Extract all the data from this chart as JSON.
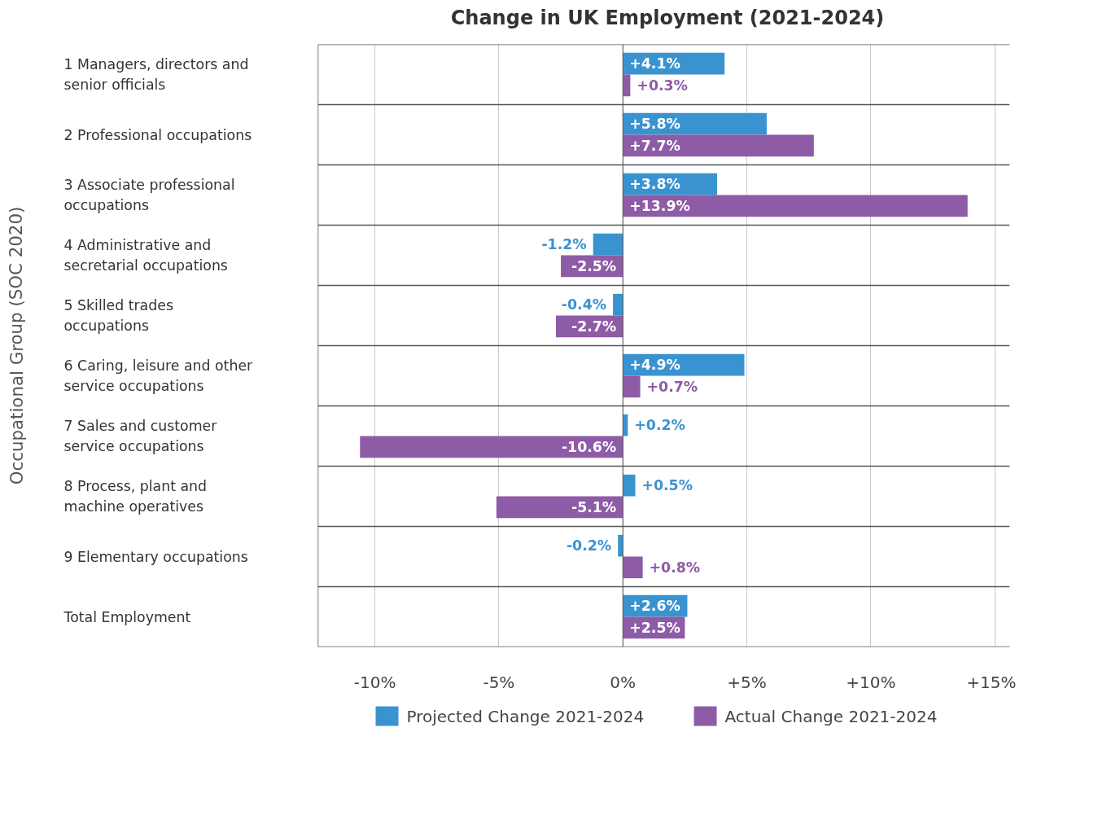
{
  "chart_data": {
    "type": "bar",
    "orientation": "horizontal",
    "title": "Change in UK Employment (2021-2024)",
    "ylabel": "Occupational Group (SOC 2020)",
    "categories": [
      "1 Managers, directors and senior officials",
      "2 Professional occupations",
      "3 Associate professional occupations",
      "4 Administrative and secretarial occupations",
      "5 Skilled trades occupations",
      "6 Caring, leisure and other service occupations",
      "7 Sales and customer service occupations",
      "8 Process, plant and machine operatives",
      "9 Elementary occupations",
      "Total Employment"
    ],
    "series": [
      {
        "name": "Projected Change 2021-2024",
        "color": "#3a93d1",
        "values": [
          4.1,
          5.8,
          3.8,
          -1.2,
          -0.4,
          4.9,
          0.2,
          0.5,
          -0.2,
          2.6
        ],
        "value_labels": [
          "+4.1%",
          "+5.8%",
          "+3.8%",
          "-1.2%",
          "-0.4%",
          "+4.9%",
          "+0.2%",
          "+0.5%",
          "-0.2%",
          "+2.6%"
        ]
      },
      {
        "name": "Actual Change 2021-2024",
        "color": "#8e5ba6",
        "values": [
          0.3,
          7.7,
          13.9,
          -2.5,
          -2.7,
          0.7,
          -10.6,
          -5.1,
          0.8,
          2.5
        ],
        "value_labels": [
          "+0.3%",
          "+7.7%",
          "+13.9%",
          "-2.5%",
          "-2.7%",
          "+0.7%",
          "-10.6%",
          "-5.1%",
          "+0.8%",
          "+2.5%"
        ]
      }
    ],
    "xlim": [
      -12.3,
      15.6
    ],
    "xticks": [
      {
        "value": -10,
        "label": "-10%"
      },
      {
        "value": -5,
        "label": "-5%"
      },
      {
        "value": 0,
        "label": "0%"
      },
      {
        "value": 5,
        "label": "+5%"
      },
      {
        "value": 10,
        "label": "+10%"
      },
      {
        "value": 15,
        "label": "+15%"
      }
    ],
    "grid": "x",
    "legend": "bottom"
  }
}
